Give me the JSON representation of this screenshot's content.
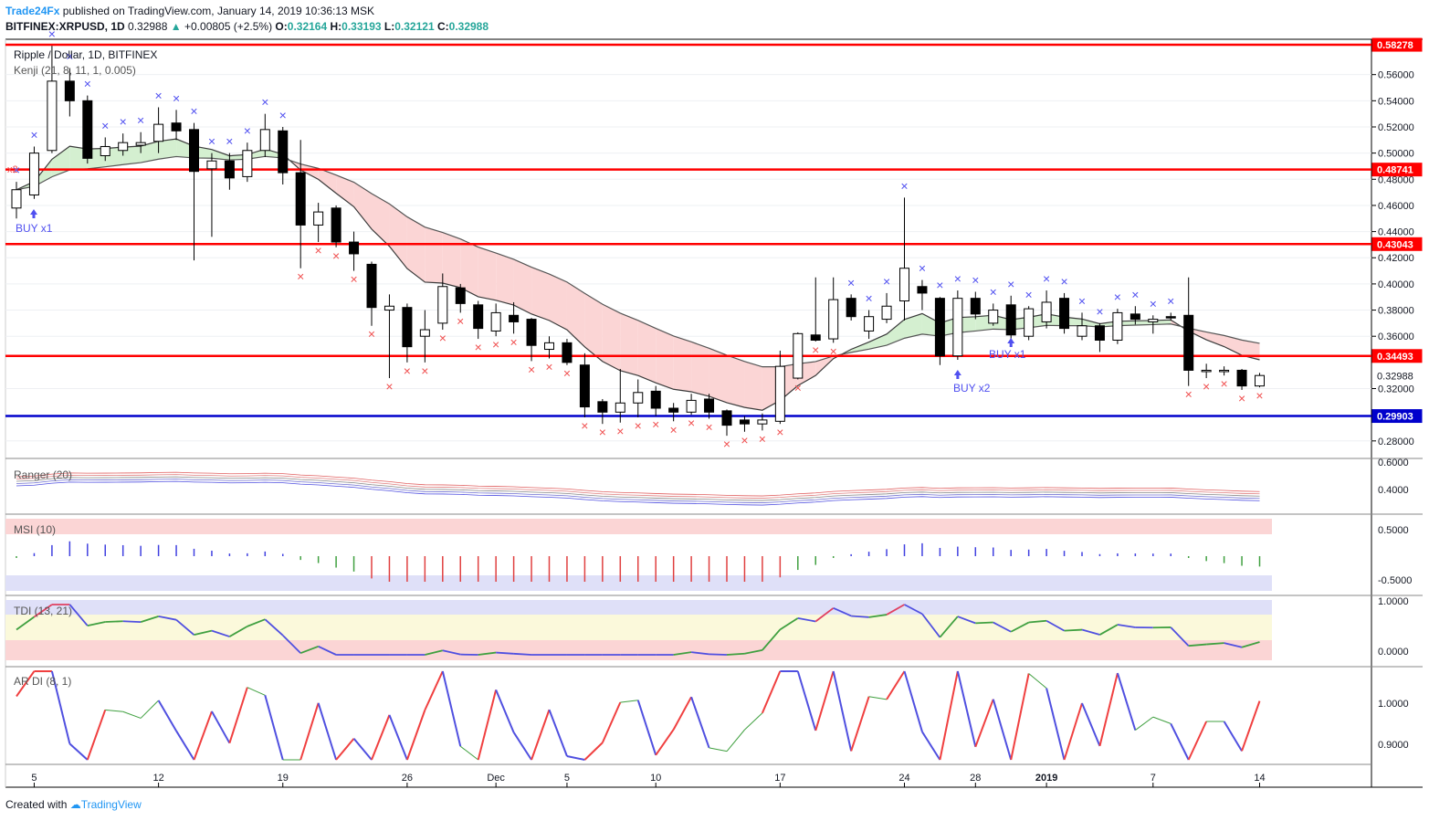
{
  "header": {
    "author": "Trade24Fx",
    "published": "published on TradingView.com, January 14, 2019 10:36:13 MSK",
    "symbol": "BITFINEX:XRPUSD, 1D",
    "last": "0.32988",
    "change": "+0.00805 (+2.5%)",
    "o_label": "O:",
    "o": "0.32164",
    "h_label": "H:",
    "h": "0.33193",
    "l_label": "L:",
    "l": "0.32121",
    "c_label": "C:",
    "c": "0.32988"
  },
  "main_pane": {
    "title": "Ripple / Dollar, 1D, BITFINEX",
    "indicator": "Kenji (21, 8, 11, 1, 0.005)",
    "buy_labels": [
      "BUY x1",
      "BUY x1",
      "BUY x2"
    ],
    "left_marker": "x2",
    "level_labels": [
      "0.58278",
      "0.48741",
      "0.43043",
      "0.34493",
      "0.32988",
      "0.29903"
    ],
    "colors": {
      "resistance": "#ff0000",
      "support": "#0000cc",
      "sell_x": "#f05050",
      "buy_x": "#5050f0",
      "cloud_bull": "#d4efd0",
      "cloud_bear": "#fbd5d5"
    }
  },
  "panes": {
    "ranger": "Ranger (20)",
    "msi": "MSI (10)",
    "tdi": "TDI (13, 21)",
    "ardi": "AR DI (8, 1)"
  },
  "footer": {
    "created_with": "Created with",
    "brand": "TradingView"
  },
  "chart_data": {
    "type": "candlestick",
    "title": "Ripple / Dollar, 1D, BITFINEX",
    "x_ticks": [
      "5",
      "12",
      "19",
      "26",
      "Dec",
      "5",
      "10",
      "17",
      "24",
      "28",
      "2019",
      "7",
      "14"
    ],
    "y_ticks": [
      "0.56000",
      "0.54000",
      "0.52000",
      "0.50000",
      "0.48000",
      "0.46000",
      "0.44000",
      "0.42000",
      "0.40000",
      "0.38000",
      "0.36000",
      "0.32000",
      "0.28000"
    ],
    "ylim": [
      0.268,
      0.587
    ],
    "levels": [
      {
        "value": 0.58278,
        "color": "#ff0000"
      },
      {
        "value": 0.48741,
        "color": "#ff0000"
      },
      {
        "value": 0.43043,
        "color": "#ff0000"
      },
      {
        "value": 0.34493,
        "color": "#ff0000"
      },
      {
        "value": 0.29903,
        "color": "#0000cc"
      }
    ],
    "ohlc": [
      [
        0.458,
        0.472,
        0.478,
        0.45
      ],
      [
        0.468,
        0.5,
        0.505,
        0.465
      ],
      [
        0.502,
        0.555,
        0.582,
        0.5
      ],
      [
        0.555,
        0.54,
        0.565,
        0.528
      ],
      [
        0.54,
        0.496,
        0.544,
        0.492
      ],
      [
        0.498,
        0.505,
        0.512,
        0.494
      ],
      [
        0.502,
        0.508,
        0.515,
        0.498
      ],
      [
        0.506,
        0.508,
        0.516,
        0.5
      ],
      [
        0.509,
        0.522,
        0.535,
        0.5
      ],
      [
        0.523,
        0.517,
        0.533,
        0.51
      ],
      [
        0.518,
        0.486,
        0.523,
        0.418
      ],
      [
        0.488,
        0.494,
        0.5,
        0.436
      ],
      [
        0.494,
        0.481,
        0.5,
        0.472
      ],
      [
        0.482,
        0.502,
        0.508,
        0.478
      ],
      [
        0.502,
        0.518,
        0.53,
        0.497
      ],
      [
        0.517,
        0.485,
        0.52,
        0.476
      ],
      [
        0.485,
        0.445,
        0.51,
        0.412
      ],
      [
        0.445,
        0.455,
        0.462,
        0.432
      ],
      [
        0.458,
        0.432,
        0.46,
        0.428
      ],
      [
        0.432,
        0.423,
        0.44,
        0.41
      ],
      [
        0.415,
        0.382,
        0.417,
        0.368
      ],
      [
        0.38,
        0.383,
        0.392,
        0.328
      ],
      [
        0.382,
        0.352,
        0.385,
        0.34
      ],
      [
        0.36,
        0.365,
        0.38,
        0.34
      ],
      [
        0.37,
        0.398,
        0.408,
        0.365
      ],
      [
        0.397,
        0.385,
        0.4,
        0.378
      ],
      [
        0.384,
        0.366,
        0.387,
        0.358
      ],
      [
        0.364,
        0.378,
        0.385,
        0.36
      ],
      [
        0.376,
        0.371,
        0.386,
        0.362
      ],
      [
        0.373,
        0.353,
        0.374,
        0.341
      ],
      [
        0.35,
        0.355,
        0.36,
        0.343
      ],
      [
        0.355,
        0.34,
        0.358,
        0.338
      ],
      [
        0.338,
        0.306,
        0.347,
        0.298
      ],
      [
        0.31,
        0.302,
        0.312,
        0.293
      ],
      [
        0.302,
        0.309,
        0.335,
        0.294
      ],
      [
        0.309,
        0.317,
        0.327,
        0.298
      ],
      [
        0.318,
        0.305,
        0.322,
        0.299
      ],
      [
        0.305,
        0.302,
        0.309,
        0.295
      ],
      [
        0.302,
        0.311,
        0.316,
        0.3
      ],
      [
        0.312,
        0.302,
        0.316,
        0.297
      ],
      [
        0.303,
        0.292,
        0.304,
        0.284
      ],
      [
        0.296,
        0.293,
        0.299,
        0.287
      ],
      [
        0.293,
        0.296,
        0.301,
        0.288
      ],
      [
        0.295,
        0.337,
        0.349,
        0.293
      ],
      [
        0.328,
        0.362,
        0.363,
        0.327
      ],
      [
        0.361,
        0.357,
        0.405,
        0.356
      ],
      [
        0.358,
        0.388,
        0.405,
        0.355
      ],
      [
        0.389,
        0.375,
        0.392,
        0.372
      ],
      [
        0.364,
        0.375,
        0.38,
        0.358
      ],
      [
        0.373,
        0.383,
        0.393,
        0.37
      ],
      [
        0.387,
        0.412,
        0.466,
        0.372
      ],
      [
        0.398,
        0.393,
        0.403,
        0.38
      ],
      [
        0.389,
        0.345,
        0.39,
        0.338
      ],
      [
        0.345,
        0.389,
        0.395,
        0.342
      ],
      [
        0.389,
        0.377,
        0.394,
        0.373
      ],
      [
        0.37,
        0.38,
        0.385,
        0.368
      ],
      [
        0.384,
        0.361,
        0.391,
        0.358
      ],
      [
        0.36,
        0.381,
        0.383,
        0.357
      ],
      [
        0.371,
        0.386,
        0.395,
        0.366
      ],
      [
        0.389,
        0.366,
        0.393,
        0.362
      ],
      [
        0.36,
        0.368,
        0.378,
        0.357
      ],
      [
        0.368,
        0.357,
        0.37,
        0.348
      ],
      [
        0.357,
        0.378,
        0.381,
        0.354
      ],
      [
        0.377,
        0.373,
        0.383,
        0.369
      ],
      [
        0.371,
        0.373,
        0.376,
        0.362
      ],
      [
        0.375,
        0.374,
        0.378,
        0.372
      ],
      [
        0.376,
        0.334,
        0.405,
        0.322
      ],
      [
        0.334,
        0.334,
        0.339,
        0.328
      ],
      [
        0.334,
        0.334,
        0.337,
        0.33
      ],
      [
        0.334,
        0.322,
        0.335,
        0.319
      ],
      [
        0.322,
        0.33,
        0.332,
        0.321
      ]
    ]
  }
}
